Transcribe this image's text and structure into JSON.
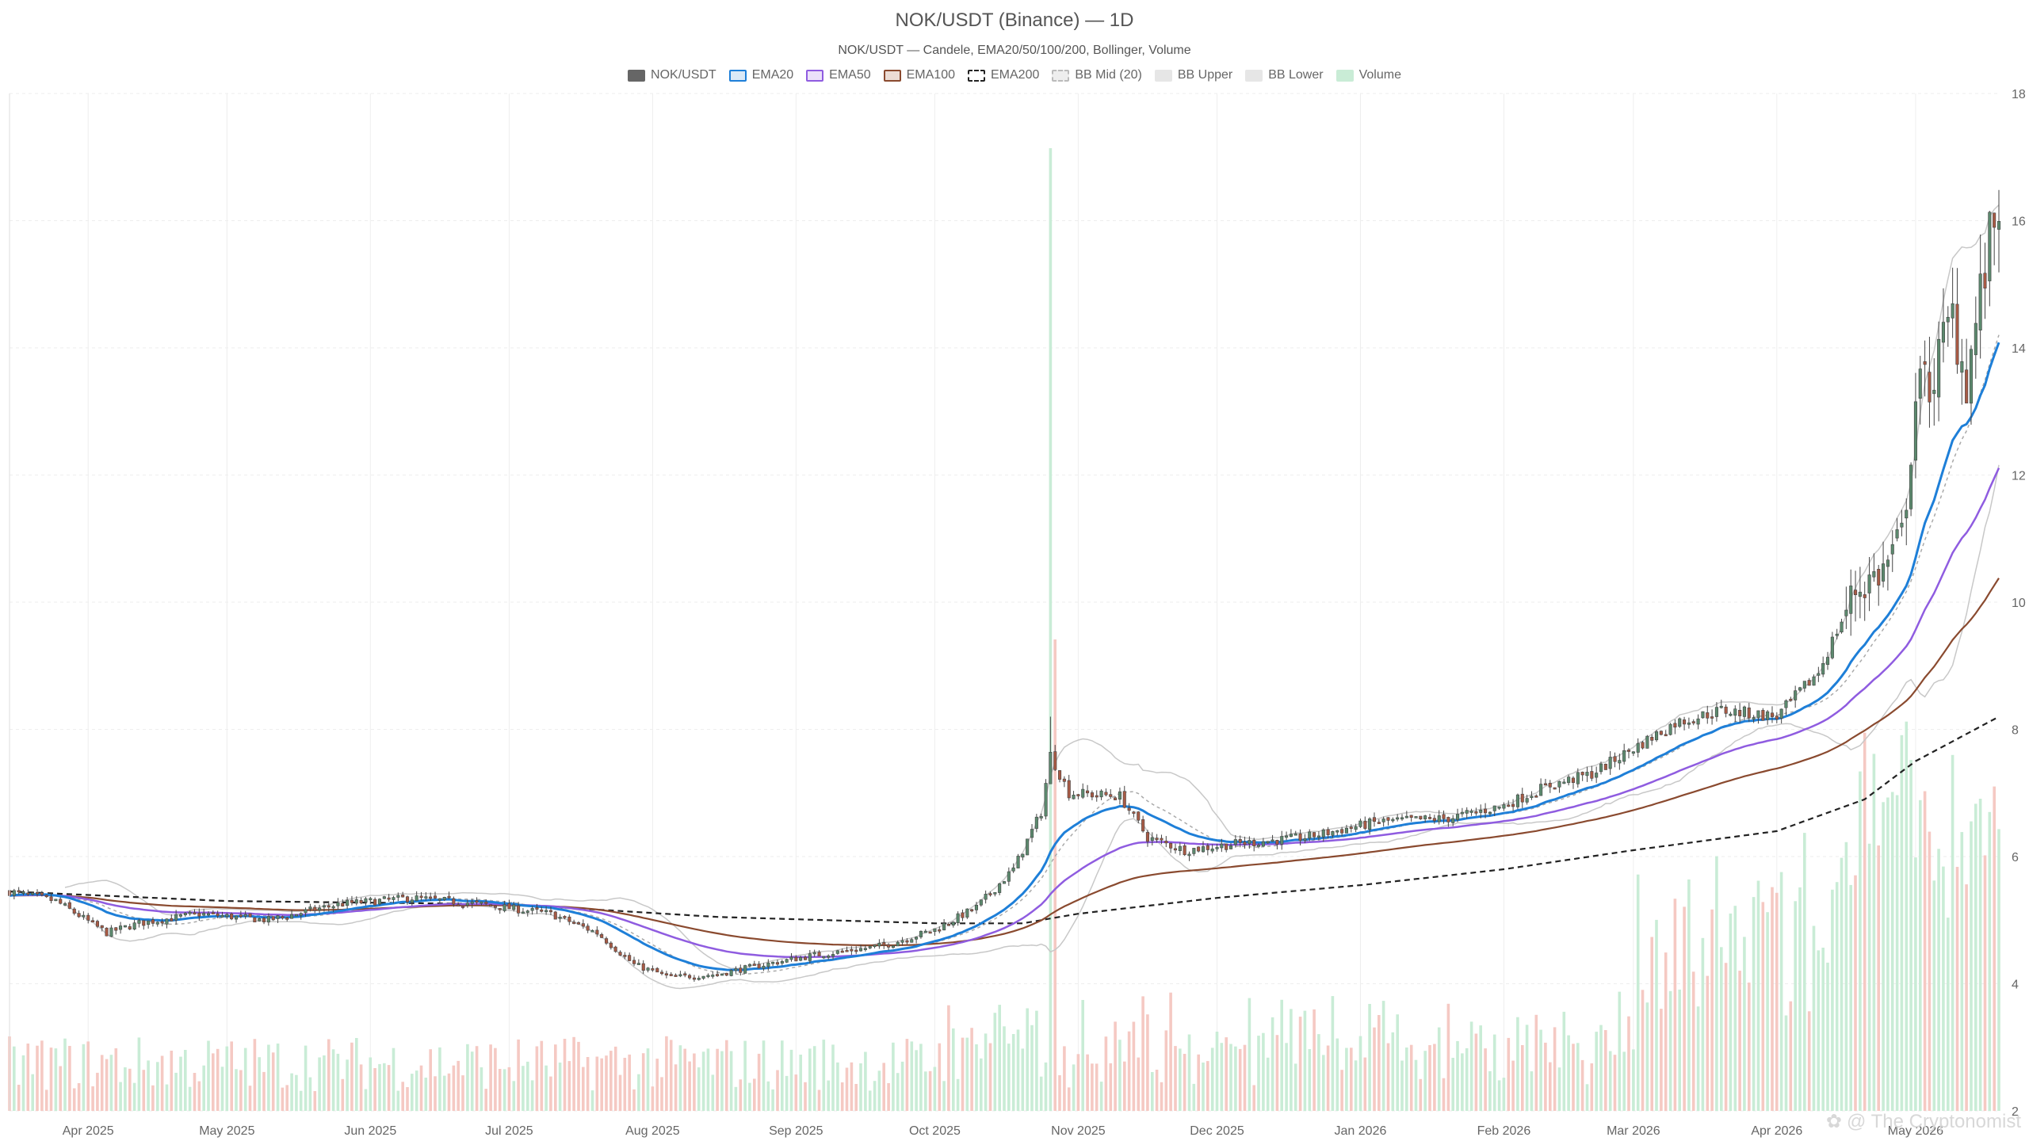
{
  "title": "NOK/USDT (Binance) — 1D",
  "subtitle": "NOK/USDT — Candele, EMA20/50/100/200, Bollinger, Volume",
  "watermark": "@ The Cryptonomist",
  "colors": {
    "up": "#5c8a6e",
    "down": "#a85a45",
    "vol_up": "#c9ecd6",
    "vol_down": "#f5c9c3",
    "ema20": "#1e7fd8",
    "ema50": "#8f5ce0",
    "ema100": "#8a4a2f",
    "ema200": "#222222",
    "bb_mid": "#aaaaaa",
    "bb_band": "#c8c8c8",
    "grid": "#eeeeee"
  },
  "legend": [
    {
      "label": "NOK/USDT",
      "fill": "#666666",
      "border": "#666666",
      "style": "solid"
    },
    {
      "label": "EMA20",
      "fill": "#dbe9f7",
      "border": "#1e7fd8",
      "style": "solid"
    },
    {
      "label": "EMA50",
      "fill": "#ebe1fa",
      "border": "#8f5ce0",
      "style": "solid"
    },
    {
      "label": "EMA100",
      "fill": "#ecdcd4",
      "border": "#8a4a2f",
      "style": "solid"
    },
    {
      "label": "EMA200",
      "fill": "#ffffff",
      "border": "#222222",
      "style": "dashed"
    },
    {
      "label": "BB Mid (20)",
      "fill": "#eeeeee",
      "border": "#bbbbbb",
      "style": "dashed"
    },
    {
      "label": "BB Upper",
      "fill": "#e6e6e6",
      "border": "#e6e6e6",
      "style": "solid"
    },
    {
      "label": "BB Lower",
      "fill": "#e6e6e6",
      "border": "#e6e6e6",
      "style": "solid"
    },
    {
      "label": "Volume",
      "fill": "#c9ecd6",
      "border": "#c9ecd6",
      "style": "solid"
    }
  ],
  "chart_data": {
    "type": "candlestick",
    "title": "NOK/USDT (Binance) — 1D",
    "subtitle": "NOK/USDT — Candele, EMA20/50/100/200, Bollinger, Volume",
    "x_range": [
      "2025-03-15",
      "2026-05-19"
    ],
    "ylim": [
      2,
      18
    ],
    "y_ticks": [
      2,
      4,
      6,
      8,
      10,
      12,
      14,
      16,
      18
    ],
    "y_axis_position": "right",
    "x_ticks": [
      {
        "date": "2025-04-01",
        "label": "Apr 2025"
      },
      {
        "date": "2025-05-01",
        "label": "May 2025"
      },
      {
        "date": "2025-06-01",
        "label": "Jun 2025"
      },
      {
        "date": "2025-07-01",
        "label": "Jul 2025"
      },
      {
        "date": "2025-08-01",
        "label": "Aug 2025"
      },
      {
        "date": "2025-09-01",
        "label": "Sep 2025"
      },
      {
        "date": "2025-10-01",
        "label": "Oct 2025"
      },
      {
        "date": "2025-11-01",
        "label": "Nov 2025"
      },
      {
        "date": "2025-12-01",
        "label": "Dec 2025"
      },
      {
        "date": "2026-01-01",
        "label": "Jan 2026"
      },
      {
        "date": "2026-02-01",
        "label": "Feb 2026"
      },
      {
        "date": "2026-03-01",
        "label": "Mar 2026"
      },
      {
        "date": "2026-04-01",
        "label": "Apr 2026"
      },
      {
        "date": "2026-05-01",
        "label": "May 2026"
      }
    ],
    "close_keypoints": [
      [
        "2025-03-15",
        5.45
      ],
      [
        "2025-03-25",
        5.3
      ],
      [
        "2025-04-05",
        4.8
      ],
      [
        "2025-04-12",
        4.95
      ],
      [
        "2025-04-25",
        5.1
      ],
      [
        "2025-05-10",
        5.0
      ],
      [
        "2025-05-25",
        5.25
      ],
      [
        "2025-06-10",
        5.35
      ],
      [
        "2025-06-25",
        5.25
      ],
      [
        "2025-07-10",
        5.1
      ],
      [
        "2025-07-20",
        4.8
      ],
      [
        "2025-07-28",
        4.3
      ],
      [
        "2025-08-05",
        4.1
      ],
      [
        "2025-08-15",
        4.15
      ],
      [
        "2025-08-25",
        4.3
      ],
      [
        "2025-09-05",
        4.45
      ],
      [
        "2025-09-20",
        4.6
      ],
      [
        "2025-10-01",
        4.85
      ],
      [
        "2025-10-10",
        5.2
      ],
      [
        "2025-10-18",
        5.8
      ],
      [
        "2025-10-24",
        6.7
      ],
      [
        "2025-10-26",
        7.6
      ],
      [
        "2025-10-30",
        7.0
      ],
      [
        "2025-11-10",
        6.95
      ],
      [
        "2025-11-16",
        6.3
      ],
      [
        "2025-11-24",
        6.1
      ],
      [
        "2025-12-05",
        6.2
      ],
      [
        "2025-12-20",
        6.3
      ],
      [
        "2026-01-05",
        6.55
      ],
      [
        "2026-01-20",
        6.6
      ],
      [
        "2026-02-01",
        6.8
      ],
      [
        "2026-02-10",
        7.1
      ],
      [
        "2026-02-20",
        7.3
      ],
      [
        "2026-03-01",
        7.7
      ],
      [
        "2026-03-10",
        8.1
      ],
      [
        "2026-03-20",
        8.3
      ],
      [
        "2026-04-01",
        8.2
      ],
      [
        "2026-04-10",
        8.9
      ],
      [
        "2026-04-18",
        10.2
      ],
      [
        "2026-04-24",
        10.5
      ],
      [
        "2026-04-28",
        11.0
      ],
      [
        "2026-05-01",
        13.2
      ],
      [
        "2026-05-05",
        13.6
      ],
      [
        "2026-05-09",
        14.5
      ],
      [
        "2026-05-12",
        13.5
      ],
      [
        "2026-05-15",
        14.8
      ],
      [
        "2026-05-19",
        16.4
      ]
    ],
    "ema200_keypoints": [
      [
        "2025-03-15",
        5.45
      ],
      [
        "2025-05-01",
        5.3
      ],
      [
        "2025-07-01",
        5.25
      ],
      [
        "2025-08-15",
        5.05
      ],
      [
        "2025-10-01",
        4.95
      ],
      [
        "2025-10-20",
        4.95
      ],
      [
        "2025-11-01",
        5.1
      ],
      [
        "2025-12-01",
        5.35
      ],
      [
        "2026-01-01",
        5.55
      ],
      [
        "2026-02-01",
        5.8
      ],
      [
        "2026-03-01",
        6.1
      ],
      [
        "2026-04-01",
        6.4
      ],
      [
        "2026-04-20",
        6.9
      ],
      [
        "2026-05-01",
        7.5
      ],
      [
        "2026-05-19",
        8.2
      ]
    ],
    "volume_spike": {
      "date": "2025-10-26",
      "relative": 1.0
    }
  },
  "series_names": [
    "NOK/USDT",
    "EMA20",
    "EMA50",
    "EMA100",
    "EMA200",
    "BB Mid (20)",
    "BB Upper",
    "BB Lower",
    "Volume"
  ]
}
